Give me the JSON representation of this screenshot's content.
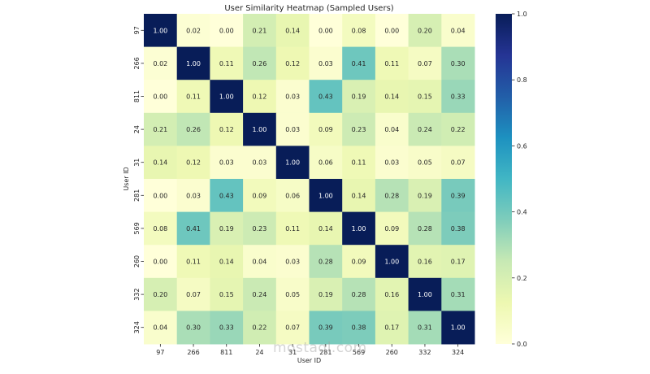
{
  "chart_data": {
    "type": "heatmap",
    "title": "User Similarity Heatmap (Sampled Users)",
    "xlabel": "User ID",
    "ylabel": "User ID",
    "x_categories": [
      "97",
      "266",
      "811",
      "24",
      "31",
      "281",
      "569",
      "260",
      "332",
      "324"
    ],
    "y_categories": [
      "97",
      "266",
      "811",
      "24",
      "31",
      "281",
      "569",
      "260",
      "332",
      "324"
    ],
    "values": [
      [
        1.0,
        0.02,
        0.0,
        0.21,
        0.14,
        0.0,
        0.08,
        0.0,
        0.2,
        0.04
      ],
      [
        0.02,
        1.0,
        0.11,
        0.26,
        0.12,
        0.03,
        0.41,
        0.11,
        0.07,
        0.3
      ],
      [
        0.0,
        0.11,
        1.0,
        0.12,
        0.03,
        0.43,
        0.19,
        0.14,
        0.15,
        0.33
      ],
      [
        0.21,
        0.26,
        0.12,
        1.0,
        0.03,
        0.09,
        0.23,
        0.04,
        0.24,
        0.22
      ],
      [
        0.14,
        0.12,
        0.03,
        0.03,
        1.0,
        0.06,
        0.11,
        0.03,
        0.05,
        0.07
      ],
      [
        0.0,
        0.03,
        0.43,
        0.09,
        0.06,
        1.0,
        0.14,
        0.28,
        0.19,
        0.39
      ],
      [
        0.08,
        0.41,
        0.19,
        0.23,
        0.11,
        0.14,
        1.0,
        0.09,
        0.28,
        0.38
      ],
      [
        0.0,
        0.11,
        0.14,
        0.04,
        0.03,
        0.28,
        0.09,
        1.0,
        0.16,
        0.17
      ],
      [
        0.2,
        0.07,
        0.15,
        0.24,
        0.05,
        0.19,
        0.28,
        0.16,
        1.0,
        0.31
      ],
      [
        0.04,
        0.3,
        0.33,
        0.22,
        0.07,
        0.39,
        0.38,
        0.17,
        0.31,
        1.0
      ]
    ],
    "annotation_format": "0.00",
    "colormap": "YlGnBu",
    "colormap_stops": [
      "#ffffd9",
      "#edf8b1",
      "#c7e9b4",
      "#7fcdbb",
      "#41b6c4",
      "#1d91c0",
      "#225ea8",
      "#253494",
      "#081d58"
    ],
    "vmin": 0.0,
    "vmax": 1.0,
    "colorbar": {
      "ticks": [
        0.0,
        0.2,
        0.4,
        0.6,
        0.8,
        1.0
      ],
      "tick_labels": [
        "0.0",
        "0.2",
        "0.4",
        "0.6",
        "0.8",
        "1.0"
      ],
      "placement": "right"
    },
    "grid": false
  },
  "watermark": "mostaql.com"
}
